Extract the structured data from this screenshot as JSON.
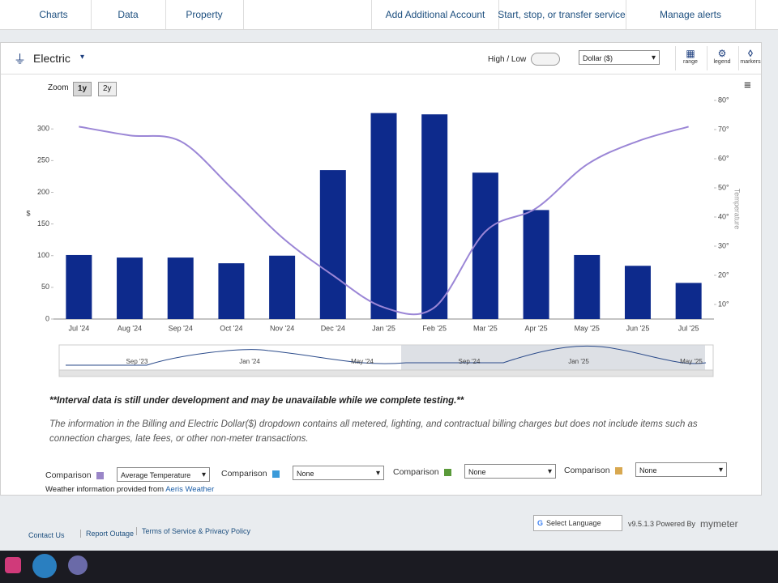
{
  "nav": [
    "Charts",
    "Data",
    "Property",
    "Add Additional Account",
    "Start, stop, or transfer service",
    "Manage alerts"
  ],
  "panel": {
    "title": "Electric",
    "toggle": "High / Low",
    "unit_select": "Dollar ($)",
    "tools": [
      "range",
      "legend",
      "markers"
    ],
    "zoom_label": "Zoom",
    "zoom_options": [
      "1y",
      "2y"
    ]
  },
  "chart_data": {
    "type": "bar",
    "y_label": "$",
    "y2_label": "Temperature",
    "categories": [
      "Jul '24",
      "Aug '24",
      "Sep '24",
      "Oct '24",
      "Nov '24",
      "Dec '24",
      "Jan '25",
      "Feb '25",
      "Mar '25",
      "Apr '25",
      "May '25",
      "Jun '25",
      "Jul '25"
    ],
    "series": [
      {
        "type": "bar",
        "color": "#0d2a8c",
        "values": [
          101,
          97,
          97,
          88,
          100,
          235,
          325,
          323,
          231,
          172,
          101,
          84,
          57
        ]
      },
      {
        "type": "line",
        "axis": "y2",
        "color": "#9b86d6",
        "values": [
          71,
          68,
          66,
          50,
          33,
          20,
          9,
          9,
          35,
          43,
          58,
          66,
          71
        ]
      }
    ],
    "ylim": [
      0,
      345
    ],
    "yticks": [
      0,
      50,
      100,
      150,
      200,
      250,
      300
    ],
    "y2lim": [
      5,
      80
    ],
    "y2ticks": [
      {
        "value": 10,
        "label": "10°"
      },
      {
        "value": 20,
        "label": "20°"
      },
      {
        "value": 30,
        "label": "30°"
      },
      {
        "value": 40,
        "label": "40°"
      },
      {
        "value": 50,
        "label": "50°"
      },
      {
        "value": 60,
        "label": "60°"
      },
      {
        "value": 70,
        "label": "70°"
      },
      {
        "value": 80,
        "label": "80°"
      }
    ],
    "navigator_labels": [
      "Sep '23",
      "Jan '24",
      "May '24",
      "Sep '24",
      "Jan '25",
      "May '25"
    ]
  },
  "notes": {
    "warning": "**Interval data is still under development and may be unavailable while we complete testing.**",
    "info": "The information in the Billing and Electric Dollar($) dropdown contains all metered, lighting, and contractual billing charges but does not include items such as connection charges, late fees, or other non-meter transactions."
  },
  "comparisons": [
    {
      "label": "Comparison",
      "color": "#9a86c8",
      "selected": "Average Temperature"
    },
    {
      "label": "Comparison",
      "color": "#3a9ad9",
      "selected": "None"
    },
    {
      "label": "Comparison",
      "color": "#5a9a3a",
      "selected": "None"
    },
    {
      "label": "Comparison",
      "color": "#d8a850",
      "selected": "None"
    }
  ],
  "weather": {
    "text": "Weather information provided from",
    "link": "Aeris Weather"
  },
  "footer": {
    "links": [
      "Contact Us",
      "Report Outage",
      "Terms of Service & Privacy Policy"
    ],
    "language": "Select Language",
    "version": "v9.5.1.3 Powered By",
    "brand": "mymeter"
  }
}
